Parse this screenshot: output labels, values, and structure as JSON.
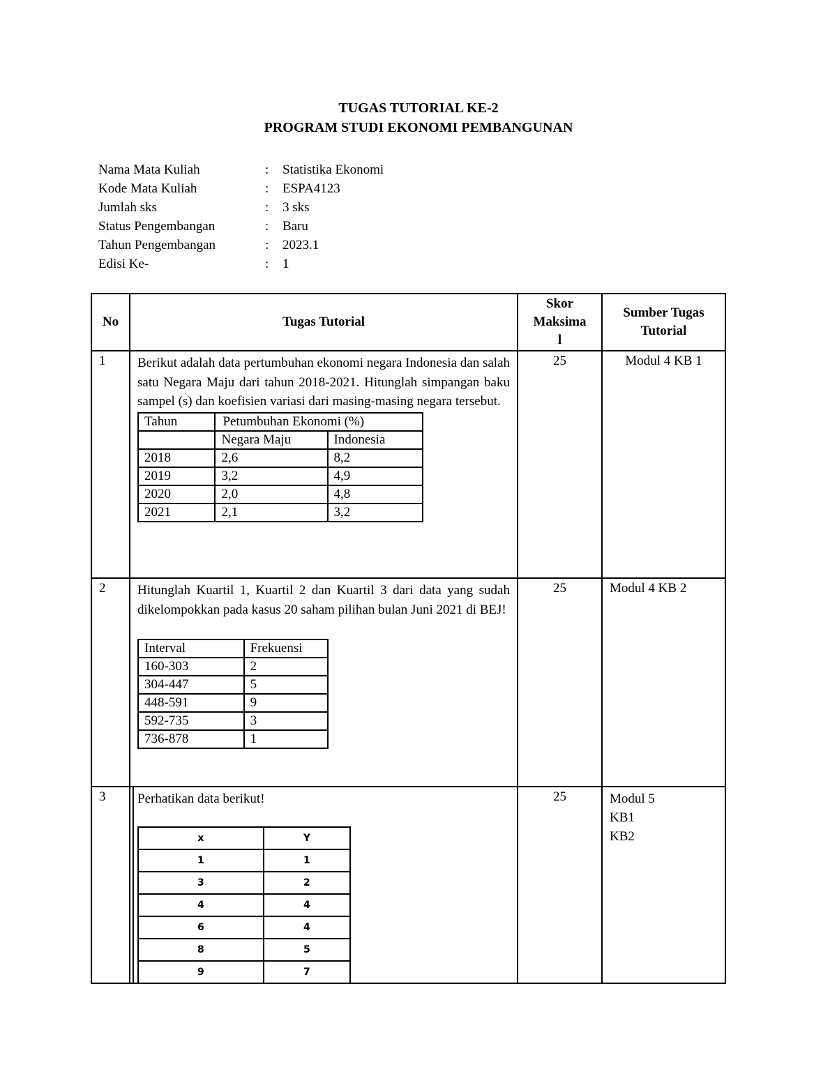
{
  "header": {
    "title": "TUGAS TUTORIAL  KE-2",
    "subtitle": "PROGRAM STUDI EKONOMI PEMBANGUNAN"
  },
  "info": [
    {
      "label": "Nama Mata Kuliah",
      "colon": ":",
      "value": "Statistika Ekonomi"
    },
    {
      "label": "Kode Mata Kuliah",
      "colon": ":",
      "value": "ESPA4123"
    },
    {
      "label": "Jumlah sks",
      "colon": ":",
      "value": "3 sks"
    },
    {
      "label": "Status Pengembangan",
      "colon": ":",
      "value": "Baru"
    },
    {
      "label": "Tahun Pengembangan",
      "colon": ":",
      "value": "2023.1"
    },
    {
      "label": "Edisi Ke-",
      "colon": ":",
      "value": "1"
    }
  ],
  "table": {
    "headers": {
      "no": "No",
      "task": "Tugas Tutorial",
      "skor_1": "Skor",
      "skor_2": "Maksima",
      "skor_3": "l",
      "src_1": "Sumber Tugas",
      "src_2": "Tutorial"
    },
    "rows": [
      {
        "no": "1",
        "text": "Berikut adalah data pertumbuhan ekonomi negara Indonesia dan salah satu Negara Maju dari tahun 2018-2021. Hitunglah simpangan baku sampel (s) dan koefisien variasi dari masing-masing negara tersebut.",
        "skor": "25",
        "source": "Modul 4 KB 1",
        "subtable": {
          "h_year": "Tahun",
          "h_group": "Petumbuhan Ekonomi (%)",
          "h_a": "Negara Maju",
          "h_b": "Indonesia",
          "rows": [
            [
              "2018",
              "2,6",
              "8,2"
            ],
            [
              "2019",
              "3,2",
              "4,9"
            ],
            [
              "2020",
              "2,0",
              "4,8"
            ],
            [
              "2021",
              "2,1",
              "3,2"
            ]
          ]
        }
      },
      {
        "no": "2",
        "text": "Hitunglah Kuartil 1, Kuartil 2 dan Kuartil 3 dari data yang sudah dikelompokkan pada kasus 20 saham pilihan bulan Juni 2021 di BEJ!",
        "skor": "25",
        "source": "Modul 4 KB 2",
        "subtable": {
          "headers": [
            "Interval",
            "Frekuensi"
          ],
          "rows": [
            [
              "160-303",
              "2"
            ],
            [
              "304-447",
              "5"
            ],
            [
              "448-591",
              "9"
            ],
            [
              "592-735",
              "3"
            ],
            [
              "736-878",
              "1"
            ]
          ]
        }
      },
      {
        "no": "3",
        "text": "Perhatikan data berikut!",
        "skor": "25",
        "source_lines": [
          "Modul 5",
          "KB1",
          "KB2"
        ],
        "subtable": {
          "headers": [
            "x",
            "Y"
          ],
          "rows": [
            [
              "1",
              "1"
            ],
            [
              "3",
              "2"
            ],
            [
              "4",
              "4"
            ],
            [
              "6",
              "4"
            ],
            [
              "8",
              "5"
            ],
            [
              "9",
              "7"
            ]
          ]
        }
      }
    ]
  }
}
